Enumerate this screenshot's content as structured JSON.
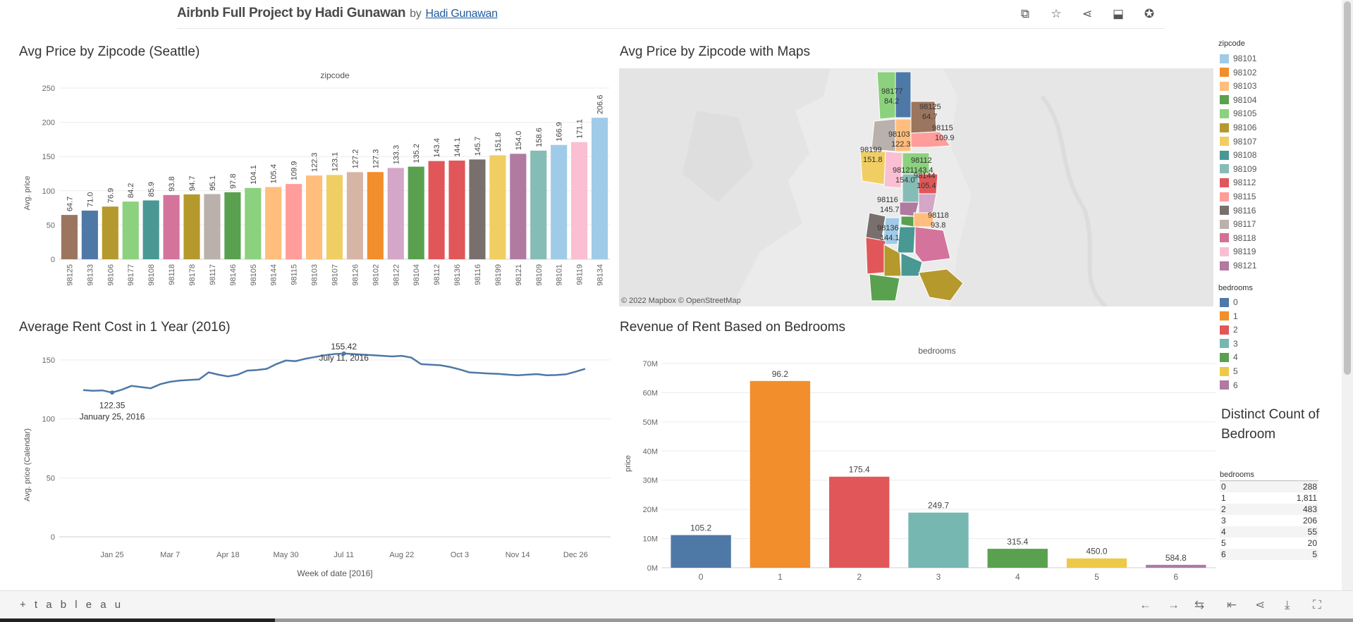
{
  "header": {
    "title": "Airbnb Full Project by Hadi Gunawan",
    "by": "by",
    "author": "Hadi Gunawan",
    "icons": [
      "copy-icon",
      "star-icon",
      "share-icon",
      "comment-icon",
      "badge-icon"
    ]
  },
  "colors": {
    "98125": "#9c755f",
    "98133": "#4e79a7",
    "98106": "#b6992d",
    "98177": "#8cd17d",
    "98108": "#499894",
    "98118": "#d4739b",
    "98178": "#b6992d",
    "98117": "#bab0ac",
    "98146": "#59a14f",
    "98105": "#8cd17d",
    "98144": "#ffbe7d",
    "98115": "#ff9d9a",
    "98103": "#ffbe7d",
    "98107": "#f1ce63",
    "98126": "#d7b5a6",
    "98102": "#f28e2b",
    "98122": "#d4a6c8",
    "98104": "#59a14f",
    "98112": "#e15759",
    "98136": "#e15759",
    "98116": "#79706e",
    "98199": "#f1ce63",
    "98121": "#b07aa1",
    "98109": "#86bcb6",
    "98101": "#a0cbe8",
    "98119": "#fabfd2",
    "98134": "#a0cbe8",
    "line": "#4e79a7"
  },
  "panels": {
    "zip_bar": {
      "title": "Avg Price by Zipcode (Seattle)",
      "header": "zipcode",
      "ylabel": "Avg. price"
    },
    "map": {
      "title": "Avg Price by Zipcode with Maps",
      "attribution": "© 2022 Mapbox  © OpenStreetMap"
    },
    "line": {
      "title": "Average Rent Cost in 1 Year (2016)",
      "xlabel": "Week of date [2016]",
      "ylabel": "Avg. price (Calendar)"
    },
    "bed_bar": {
      "title": "Revenue of Rent Based on Bedrooms",
      "header": "bedrooms",
      "ylabel": "price"
    }
  },
  "chart_data": [
    {
      "type": "bar",
      "title": "Avg Price by Zipcode (Seattle)",
      "xlabel": "zipcode",
      "ylabel": "Avg. price",
      "ylim": [
        0,
        250
      ],
      "yticks": [
        0,
        50,
        100,
        150,
        200,
        250
      ],
      "categories": [
        "98125",
        "98133",
        "98106",
        "98177",
        "98108",
        "98118",
        "98178",
        "98117",
        "98146",
        "98105",
        "98144",
        "98115",
        "98103",
        "98107",
        "98126",
        "98102",
        "98122",
        "98104",
        "98112",
        "98136",
        "98116",
        "98199",
        "98121",
        "98109",
        "98101",
        "98119",
        "98134"
      ],
      "values": [
        64.7,
        71.0,
        76.9,
        84.2,
        85.9,
        93.8,
        94.7,
        95.1,
        97.8,
        104.1,
        105.4,
        109.9,
        122.3,
        123.1,
        127.2,
        127.3,
        133.3,
        135.2,
        143.4,
        144.1,
        145.7,
        151.8,
        154.0,
        158.6,
        166.9,
        171.1,
        206.6
      ],
      "labels": [
        "64.7",
        "71.0",
        "76.9",
        "84.2",
        "85.9",
        "93.8",
        "94.7",
        "95.1",
        "97.8",
        "104.1",
        "105.4",
        "109.9",
        "122.3",
        "123.1",
        "127.2",
        "127.3",
        "133.3",
        "135.2",
        "143.4",
        "144.1",
        "145.7",
        "151.8",
        "154.0",
        "158.6",
        "166.9",
        "171.1",
        "206.6"
      ]
    },
    {
      "type": "line",
      "title": "Average Rent Cost in 1 Year (2016)",
      "xlabel": "Week of date [2016]",
      "ylabel": "Avg. price (Calendar)",
      "ylim": [
        0,
        160
      ],
      "yticks": [
        0,
        50,
        100,
        150
      ],
      "xticks": [
        "Jan 25",
        "Mar 7",
        "Apr 18",
        "May 30",
        "Jul 11",
        "Aug 22",
        "Oct 3",
        "Nov 14",
        "Dec 26"
      ],
      "series": [
        {
          "values": [
            124.5,
            123.8,
            124.2,
            122.35,
            124.8,
            128.0,
            127.0,
            126.0,
            129.5,
            131.5,
            132.5,
            133.0,
            133.5,
            139.5,
            137.5,
            136.0,
            137.5,
            141.0,
            141.5,
            142.5,
            146.5,
            149.5,
            149.0,
            151.0,
            152.5,
            154.0,
            155.0,
            155.42,
            155.0,
            154.5,
            154.0,
            153.5,
            153.0,
            153.5,
            152.0,
            146.5,
            146.0,
            145.5,
            144.0,
            142.0,
            139.5,
            139.0,
            138.5,
            138.2,
            137.5,
            137.0,
            137.5,
            138.0,
            137.0,
            137.2,
            137.8,
            140.0,
            142.5
          ]
        }
      ],
      "annotations": [
        {
          "week": 3,
          "value": "122.35",
          "date": "January 25, 2016"
        },
        {
          "week": 27,
          "value": "155.42",
          "date": "July 11, 2016"
        }
      ]
    },
    {
      "type": "bar",
      "title": "Revenue of Rent Based on Bedrooms",
      "xlabel": "bedrooms",
      "ylabel": "price",
      "ylim": [
        0,
        70000000
      ],
      "yticks": [
        "0M",
        "10M",
        "20M",
        "30M",
        "40M",
        "50M",
        "60M",
        "70M"
      ],
      "categories": [
        "0",
        "1",
        "2",
        "3",
        "4",
        "5",
        "6"
      ],
      "values": [
        11200000,
        64000000,
        31200000,
        18900000,
        6500000,
        3200000,
        1000000
      ],
      "labels": [
        "105.2",
        "96.2",
        "175.4",
        "249.7",
        "315.4",
        "450.0",
        "584.8"
      ],
      "colors": [
        "#4e79a7",
        "#f28e2b",
        "#e15759",
        "#76b7b2",
        "#59a14f",
        "#edc948",
        "#b07aa1"
      ]
    }
  ],
  "map_labels": [
    {
      "zip": "98177",
      "value": "84.2"
    },
    {
      "zip": "98125",
      "value": "64.7"
    },
    {
      "zip": "98115",
      "value": "109.9"
    },
    {
      "zip": "98103",
      "value": "122.3"
    },
    {
      "zip": "98199",
      "value": "151.8"
    },
    {
      "zip": "98112",
      "value": "143.4"
    },
    {
      "zip": "98121",
      "value": "154.0"
    },
    {
      "zip": "98144",
      "value": "105.4"
    },
    {
      "zip": "98116",
      "value": "145.7"
    },
    {
      "zip": "98118",
      "value": "93.8"
    },
    {
      "zip": "98136",
      "value": "144.1"
    }
  ],
  "legend_zip": {
    "title": "zipcode",
    "items": [
      {
        "label": "98101",
        "color": "#a0cbe8"
      },
      {
        "label": "98102",
        "color": "#f28e2b"
      },
      {
        "label": "98103",
        "color": "#ffbe7d"
      },
      {
        "label": "98104",
        "color": "#59a14f"
      },
      {
        "label": "98105",
        "color": "#8cd17d"
      },
      {
        "label": "98106",
        "color": "#b6992d"
      },
      {
        "label": "98107",
        "color": "#f1ce63"
      },
      {
        "label": "98108",
        "color": "#499894"
      },
      {
        "label": "98109",
        "color": "#86bcb6"
      },
      {
        "label": "98112",
        "color": "#e15759"
      },
      {
        "label": "98115",
        "color": "#ff9d9a"
      },
      {
        "label": "98116",
        "color": "#79706e"
      },
      {
        "label": "98117",
        "color": "#bab0ac"
      },
      {
        "label": "98118",
        "color": "#d37295"
      },
      {
        "label": "98119",
        "color": "#fabfd2"
      },
      {
        "label": "98121",
        "color": "#b07aa1"
      }
    ]
  },
  "legend_bed": {
    "title": "bedrooms",
    "items": [
      {
        "label": "0",
        "color": "#4e79a7"
      },
      {
        "label": "1",
        "color": "#f28e2b"
      },
      {
        "label": "2",
        "color": "#e15759"
      },
      {
        "label": "3",
        "color": "#76b7b2"
      },
      {
        "label": "4",
        "color": "#59a14f"
      },
      {
        "label": "5",
        "color": "#edc948"
      },
      {
        "label": "6",
        "color": "#b07aa1"
      }
    ]
  },
  "distinct": {
    "title": "Distinct Count of Bedroom",
    "col": "bedrooms",
    "rows": [
      {
        "k": "0",
        "v": "288"
      },
      {
        "k": "1",
        "v": "1,811"
      },
      {
        "k": "2",
        "v": "483"
      },
      {
        "k": "3",
        "v": "206"
      },
      {
        "k": "4",
        "v": "55"
      },
      {
        "k": "5",
        "v": "20"
      },
      {
        "k": "6",
        "v": "5"
      }
    ]
  },
  "footer": {
    "logo": "+ t a b l e a u"
  }
}
